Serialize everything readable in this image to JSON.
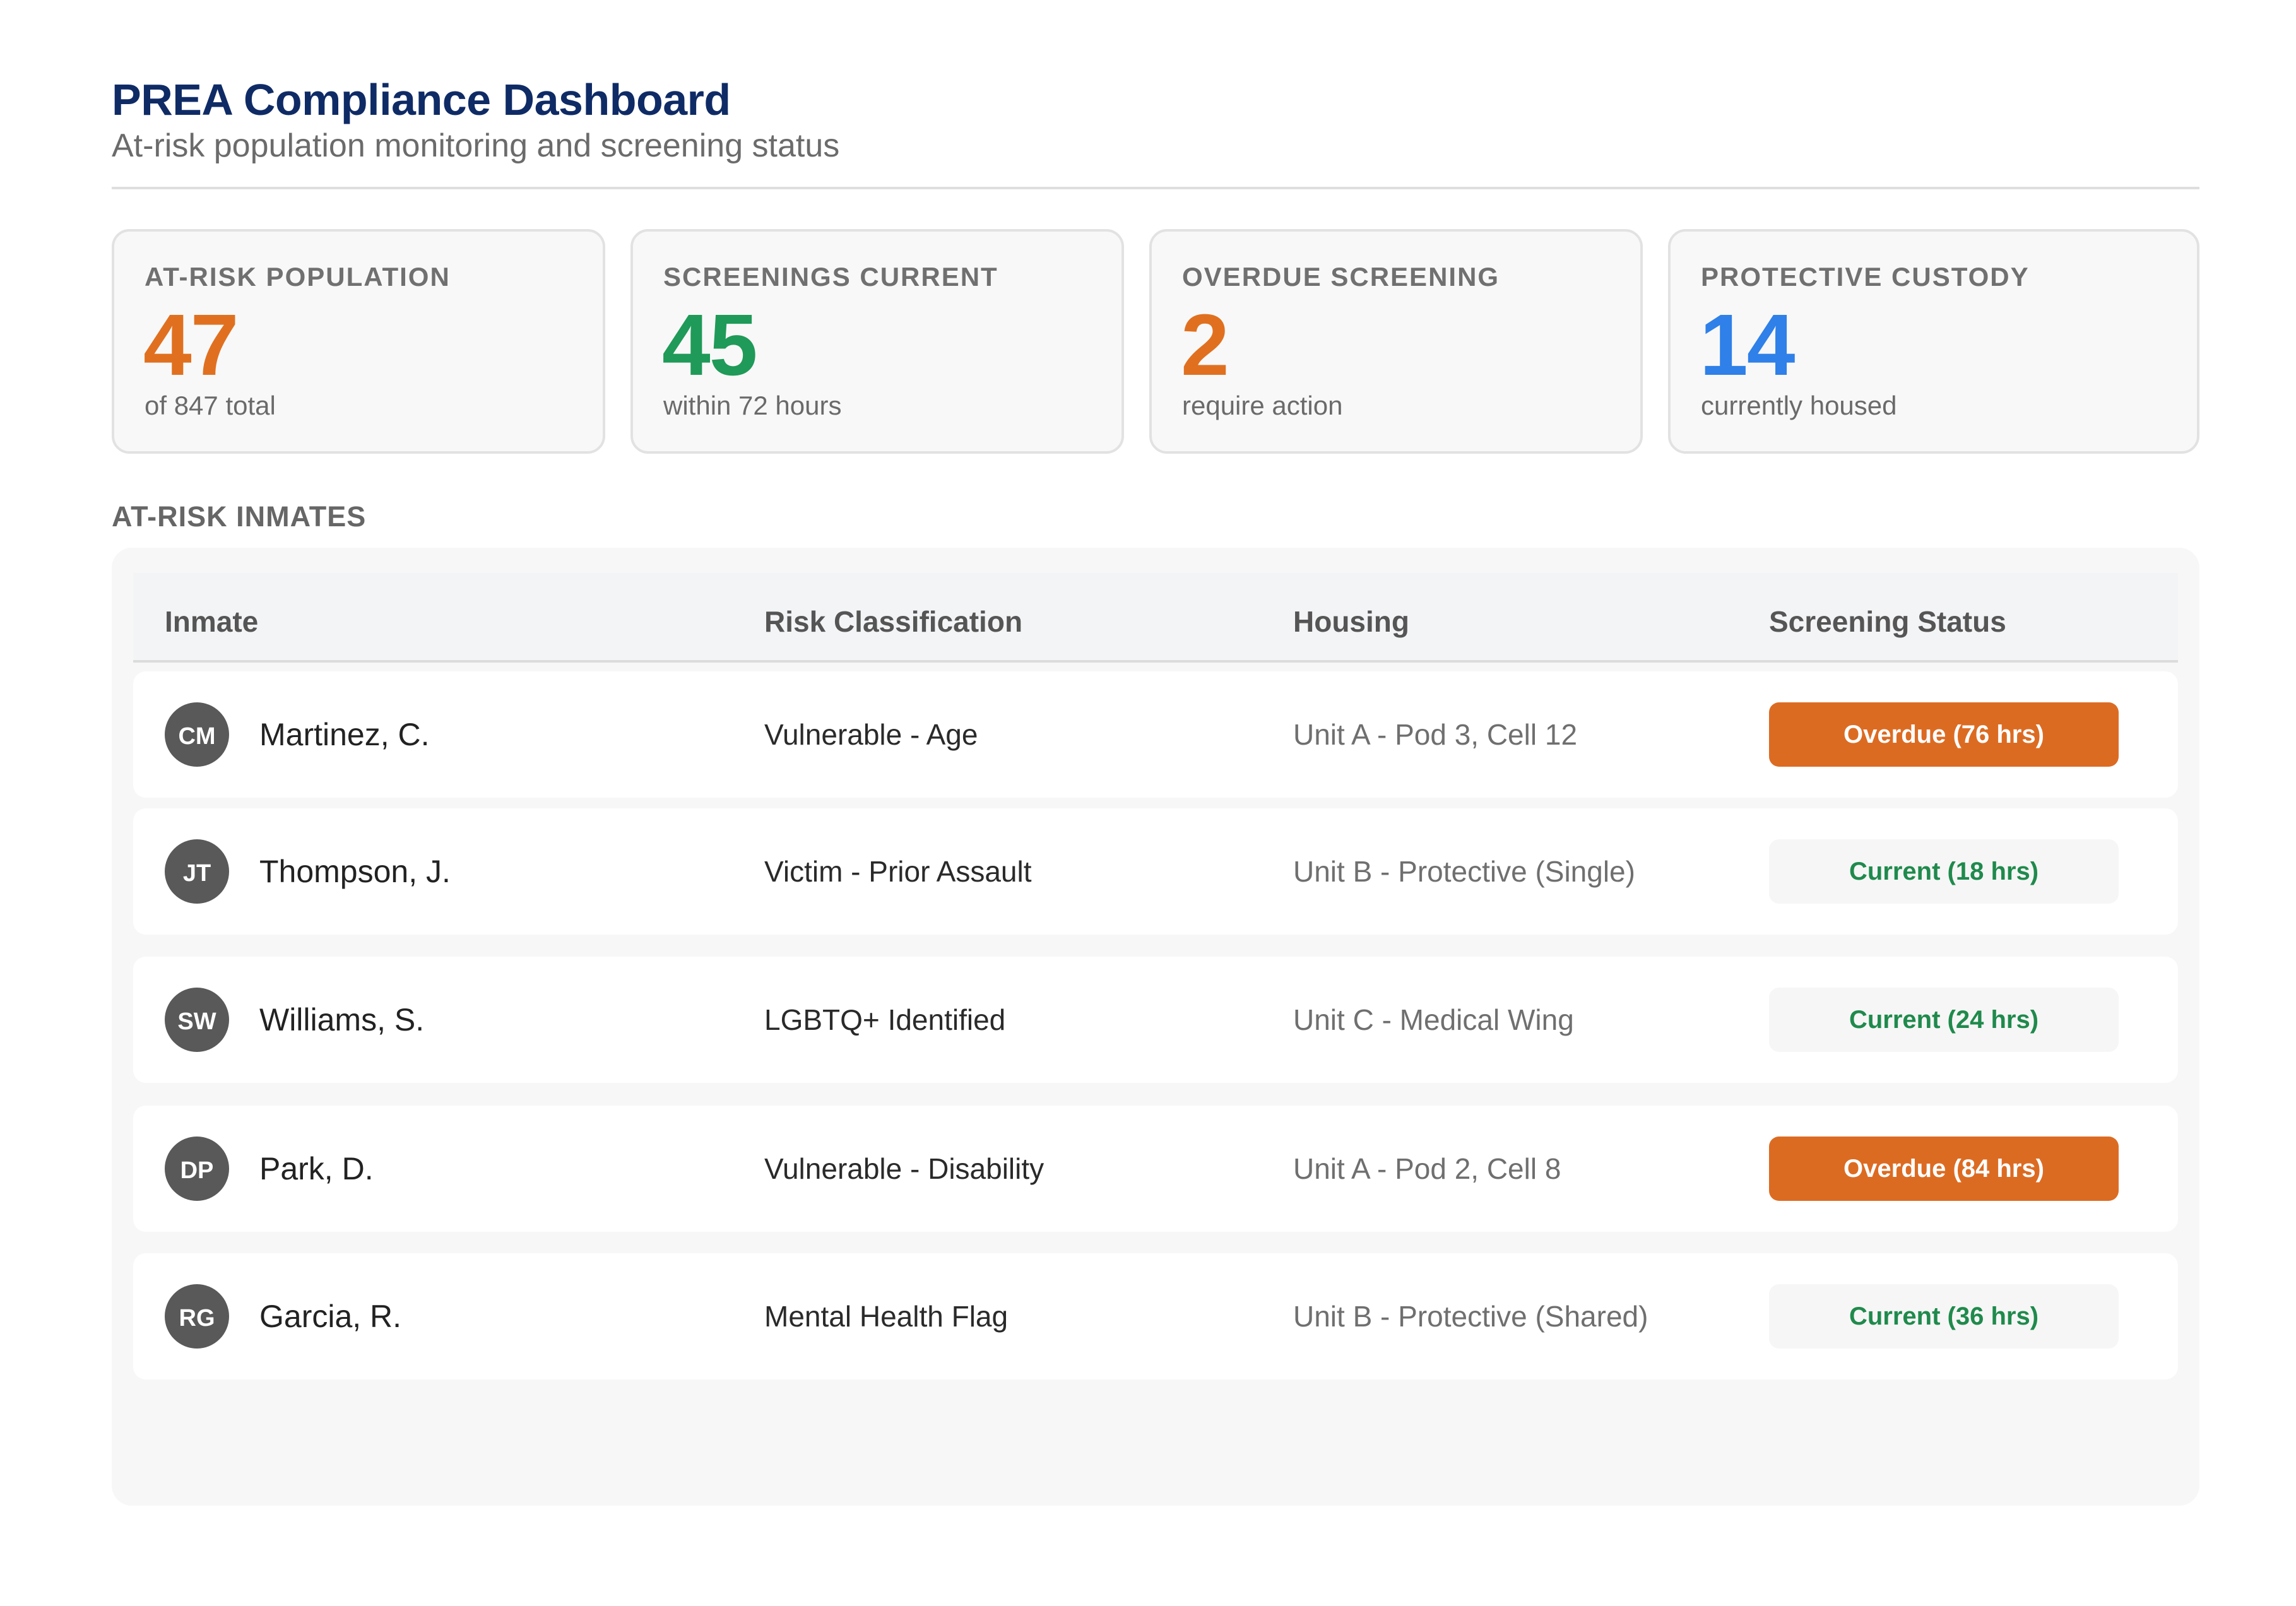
{
  "header": {
    "title": "PREA Compliance Dashboard",
    "subtitle": "At-risk population monitoring and screening status"
  },
  "kpis": [
    {
      "label": "AT-RISK POPULATION",
      "value": "47",
      "sub": "of 847 total",
      "color": "#e0701f"
    },
    {
      "label": "SCREENINGS CURRENT",
      "value": "45",
      "sub": "within 72 hours",
      "color": "#1f9a58"
    },
    {
      "label": "OVERDUE SCREENING",
      "value": "2",
      "sub": "require action",
      "color": "#e0701f"
    },
    {
      "label": "PROTECTIVE CUSTODY",
      "value": "14",
      "sub": "currently housed",
      "color": "#2f80e8"
    }
  ],
  "section": {
    "title": "AT-RISK INMATES"
  },
  "table": {
    "columns": [
      "Inmate",
      "Risk Classification",
      "Housing",
      "Screening Status"
    ],
    "rows": [
      {
        "initials": "CM",
        "name": "Martinez, C.",
        "risk": "Vulnerable - Age",
        "housing": "Unit A - Pod 3, Cell 12",
        "status": "Overdue (76 hrs)",
        "status_type": "overdue"
      },
      {
        "initials": "JT",
        "name": "Thompson, J.",
        "risk": "Victim - Prior Assault",
        "housing": "Unit B - Protective (Single)",
        "status": "Current (18 hrs)",
        "status_type": "current"
      },
      {
        "initials": "SW",
        "name": "Williams, S.",
        "risk": "LGBTQ+ Identified",
        "housing": "Unit C - Medical Wing",
        "status": "Current (24 hrs)",
        "status_type": "current"
      },
      {
        "initials": "DP",
        "name": "Park, D.",
        "risk": "Vulnerable - Disability",
        "housing": "Unit A - Pod 2, Cell 8",
        "status": "Overdue (84 hrs)",
        "status_type": "overdue"
      },
      {
        "initials": "RG",
        "name": "Garcia, R.",
        "risk": "Mental Health Flag",
        "housing": "Unit B - Protective (Shared)",
        "status": "Current (36 hrs)",
        "status_type": "current"
      }
    ]
  },
  "colors": {
    "title": "#0f2b66",
    "overdue": "#dc6b22",
    "current": "#1f8a4c"
  }
}
